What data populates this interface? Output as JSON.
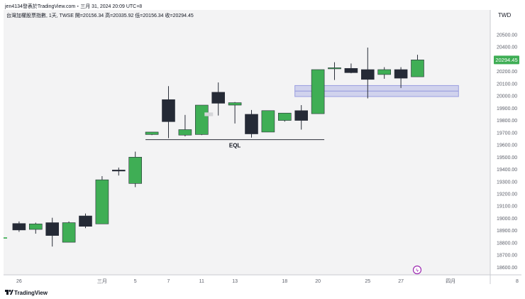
{
  "header": {
    "author_line": "jen4134發表於TradingView.com・三月 31, 2024 20:09 UTC+8",
    "symbol_line": "台灣加權股票指數, 1天, TWSE  開=20156.34  高=20335.92  低=20156.34  收=20294.45"
  },
  "currency": "TWD",
  "footer": {
    "brand": "TradingView"
  },
  "colors": {
    "up": "#3fae55",
    "down": "#252a36",
    "zone": "#b3b6e8",
    "price_tag": "#3fae55",
    "marker": "#9c27b0"
  },
  "chart_data": {
    "type": "candlestick",
    "ylim": [
      18555,
      20595
    ],
    "y_ticks": [
      18600,
      18700,
      18800,
      18900,
      19000,
      19100,
      19200,
      19300,
      19400,
      19500,
      19600,
      19700,
      19800,
      19900,
      20000,
      20100,
      20200,
      20300,
      20400,
      20500
    ],
    "y_tick_labels": [
      "18600.00",
      "18700.00",
      "18800.00",
      "18900.00",
      "19000.00",
      "19100.00",
      "19200.00",
      "19300.00",
      "19400.00",
      "19500.00",
      "19600.00",
      "19700.00",
      "19800.00",
      "19900.00",
      "20000.00",
      "20100.00",
      "20200.00",
      "20300.00",
      "20400.00",
      "20500.00"
    ],
    "x_ticks": [
      {
        "label": "26",
        "index": 1
      },
      {
        "label": "三月",
        "index": 6
      },
      {
        "label": "5",
        "index": 8
      },
      {
        "label": "7",
        "index": 10
      },
      {
        "label": "11",
        "index": 12
      },
      {
        "label": "13",
        "index": 14
      },
      {
        "label": "18",
        "index": 17
      },
      {
        "label": "20",
        "index": 19
      },
      {
        "label": "25",
        "index": 22
      },
      {
        "label": "27",
        "index": 24
      },
      {
        "label": "四月",
        "index": 27
      },
      {
        "label": "8",
        "index": 31
      }
    ],
    "candles": [
      {
        "o": 18835,
        "h": 18845,
        "l": 18815,
        "c": 18845,
        "partial": true
      },
      {
        "o": 18958,
        "h": 18975,
        "l": 18890,
        "c": 18905
      },
      {
        "o": 18910,
        "h": 18965,
        "l": 18875,
        "c": 18955
      },
      {
        "o": 18965,
        "h": 19005,
        "l": 18770,
        "c": 18860
      },
      {
        "o": 18805,
        "h": 18975,
        "l": 18805,
        "c": 18965
      },
      {
        "o": 19020,
        "h": 19040,
        "l": 18920,
        "c": 18935
      },
      {
        "o": 18955,
        "h": 19345,
        "l": 18955,
        "c": 19315
      },
      {
        "o": 19395,
        "h": 19415,
        "l": 19350,
        "c": 19390
      },
      {
        "o": 19285,
        "h": 19545,
        "l": 19255,
        "c": 19500
      },
      {
        "o": 19685,
        "h": 19705,
        "l": 19680,
        "c": 19705
      },
      {
        "o": 19970,
        "h": 20080,
        "l": 19655,
        "c": 19790
      },
      {
        "o": 19680,
        "h": 19845,
        "l": 19670,
        "c": 19725
      },
      {
        "o": 19685,
        "h": 19925,
        "l": 19680,
        "c": 19925
      },
      {
        "o": 20030,
        "h": 20110,
        "l": 19840,
        "c": 19940
      },
      {
        "o": 19925,
        "h": 19950,
        "l": 19775,
        "c": 19945
      },
      {
        "o": 19850,
        "h": 19885,
        "l": 19660,
        "c": 19690
      },
      {
        "o": 19705,
        "h": 19880,
        "l": 19705,
        "c": 19880
      },
      {
        "o": 19800,
        "h": 19855,
        "l": 19790,
        "c": 19860
      },
      {
        "o": 19880,
        "h": 19925,
        "l": 19725,
        "c": 19800
      },
      {
        "o": 19855,
        "h": 20215,
        "l": 19855,
        "c": 20215
      },
      {
        "o": 20230,
        "h": 20275,
        "l": 20130,
        "c": 20230
      },
      {
        "o": 20225,
        "h": 20265,
        "l": 20185,
        "c": 20190
      },
      {
        "o": 20215,
        "h": 20395,
        "l": 19980,
        "c": 20135
      },
      {
        "o": 20175,
        "h": 20235,
        "l": 20140,
        "c": 20215
      },
      {
        "o": 20215,
        "h": 20235,
        "l": 20065,
        "c": 20145
      },
      {
        "o": 20156.34,
        "h": 20335.92,
        "l": 20156.34,
        "c": 20294.45
      }
    ],
    "eql": {
      "label": "EQL",
      "value": 19643,
      "from_index": 9,
      "to_index": 19
    },
    "zone": {
      "low": 19995,
      "high": 20085,
      "mid": 20040,
      "from_index": 18,
      "to_index": 27
    },
    "last_price": {
      "value": 20294.45,
      "label": "20294.45"
    }
  }
}
